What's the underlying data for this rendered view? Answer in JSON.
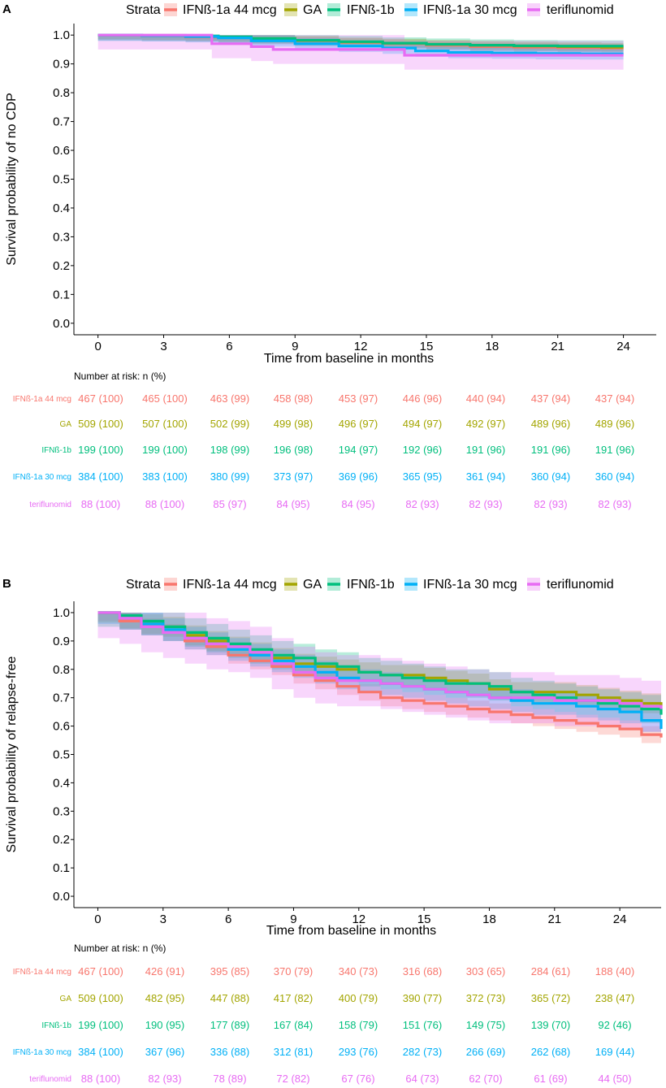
{
  "chart_data": [
    {
      "type": "line",
      "panel": "A",
      "legend_title": "Strata",
      "xlabel": "Time from baseline in months",
      "ylabel": "Survival probability of no CDP",
      "xlim": [
        -1.1,
        25.5
      ],
      "ylim": [
        -0.04,
        1.04
      ],
      "xticks": [
        0,
        3,
        6,
        9,
        12,
        15,
        18,
        21,
        24
      ],
      "yticks": [
        0.0,
        0.1,
        0.2,
        0.3,
        0.4,
        0.5,
        0.6,
        0.7,
        0.8,
        0.9,
        1.0
      ],
      "yticklabels": [
        "0.0",
        "0.1",
        "0.2",
        "0.3",
        "0.4",
        "0.5",
        "0.6",
        "0.7",
        "0.8",
        "0.9",
        "1.0"
      ],
      "risk_table_title": "Number at risk: n (%)",
      "series": [
        {
          "name": "IFNß-1a 44 mcg",
          "color": "#F8766D",
          "x": [
            0,
            2,
            4,
            5.5,
            7,
            9,
            11,
            13,
            15,
            17,
            19,
            21,
            23,
            24
          ],
          "y": [
            1.0,
            0.997,
            0.993,
            0.99,
            0.985,
            0.98,
            0.975,
            0.97,
            0.965,
            0.96,
            0.958,
            0.956,
            0.955,
            0.955
          ],
          "ci": 0.015
        },
        {
          "name": "GA",
          "color": "#A3A500",
          "x": [
            0,
            2,
            4,
            5.5,
            7,
            9,
            11,
            13,
            15,
            17,
            19,
            21,
            23,
            24
          ],
          "y": [
            1.0,
            0.998,
            0.996,
            0.993,
            0.988,
            0.982,
            0.976,
            0.972,
            0.968,
            0.965,
            0.962,
            0.96,
            0.958,
            0.958
          ],
          "ci": 0.015
        },
        {
          "name": "IFNß-1b",
          "color": "#00BF7D",
          "x": [
            0,
            2,
            4,
            5.5,
            7,
            9,
            11,
            13,
            15,
            17,
            19,
            21,
            23,
            24
          ],
          "y": [
            1.0,
            0.999,
            0.997,
            0.994,
            0.988,
            0.982,
            0.977,
            0.972,
            0.968,
            0.965,
            0.963,
            0.962,
            0.962,
            0.962
          ],
          "ci": 0.02
        },
        {
          "name": "IFNß-1a 30 mcg",
          "color": "#00B0F6",
          "x": [
            0,
            2,
            4,
            5.5,
            7,
            9,
            11,
            13,
            14.5,
            16,
            18,
            20,
            22,
            24
          ],
          "y": [
            1.0,
            0.998,
            0.995,
            0.99,
            0.98,
            0.97,
            0.962,
            0.955,
            0.945,
            0.94,
            0.938,
            0.936,
            0.935,
            0.935
          ],
          "ci": 0.02
        },
        {
          "name": "teriflunomid",
          "color": "#E76BF3",
          "x": [
            0,
            5,
            5.2,
            7,
            8,
            13,
            14,
            24
          ],
          "y": [
            1.0,
            1.0,
            0.97,
            0.96,
            0.95,
            0.95,
            0.93,
            0.93
          ],
          "ci": 0.05
        }
      ],
      "risk_table": [
        {
          "label": "IFNß-1a 44 mcg",
          "values": [
            "467 (100)",
            "465 (100)",
            "463 (99)",
            "458 (98)",
            "453 (97)",
            "446 (96)",
            "440 (94)",
            "437 (94)",
            "437 (94)"
          ]
        },
        {
          "label": "GA",
          "values": [
            "509 (100)",
            "507 (100)",
            "502 (99)",
            "499 (98)",
            "496 (97)",
            "494 (97)",
            "492 (97)",
            "489 (96)",
            "489 (96)"
          ]
        },
        {
          "label": "IFNß-1b",
          "values": [
            "199 (100)",
            "199 (100)",
            "198 (99)",
            "196 (98)",
            "194 (97)",
            "192 (96)",
            "191 (96)",
            "191 (96)",
            "191 (96)"
          ]
        },
        {
          "label": "IFNß-1a 30 mcg",
          "values": [
            "384 (100)",
            "383 (100)",
            "380 (99)",
            "373 (97)",
            "369 (96)",
            "365 (95)",
            "361 (94)",
            "360 (94)",
            "360 (94)"
          ]
        },
        {
          "label": "teriflunomid",
          "values": [
            "88 (100)",
            "88 (100)",
            "85 (97)",
            "84 (95)",
            "84 (95)",
            "82 (93)",
            "82 (93)",
            "82 (93)",
            "82 (93)"
          ]
        }
      ]
    },
    {
      "type": "line",
      "panel": "B",
      "legend_title": "Strata",
      "xlabel": "Time from baseline in months",
      "ylabel": "Survival probability of relapse-free",
      "xlim": [
        -1.1,
        25.9
      ],
      "ylim": [
        -0.04,
        1.04
      ],
      "xticks": [
        0,
        3,
        6,
        9,
        12,
        15,
        18,
        21,
        24
      ],
      "yticks": [
        0.0,
        0.1,
        0.2,
        0.3,
        0.4,
        0.5,
        0.6,
        0.7,
        0.8,
        0.9,
        1.0
      ],
      "yticklabels": [
        "0.0",
        "0.1",
        "0.2",
        "0.3",
        "0.4",
        "0.5",
        "0.6",
        "0.7",
        "0.8",
        "0.9",
        "1.0"
      ],
      "risk_table_title": "Number at risk: n (%)",
      "series": [
        {
          "name": "IFNß-1a 44 mcg",
          "color": "#F8766D",
          "x": [
            0,
            1,
            2,
            3,
            4,
            5,
            6,
            7,
            8,
            9,
            10,
            11,
            12,
            13,
            14,
            15,
            16,
            17,
            18,
            19,
            20,
            21,
            22,
            23,
            24,
            25,
            25.9
          ],
          "y": [
            1.0,
            0.97,
            0.95,
            0.93,
            0.9,
            0.88,
            0.85,
            0.83,
            0.81,
            0.78,
            0.76,
            0.74,
            0.72,
            0.7,
            0.69,
            0.68,
            0.67,
            0.66,
            0.65,
            0.64,
            0.63,
            0.62,
            0.61,
            0.6,
            0.59,
            0.57,
            0.56
          ],
          "ci": 0.03
        },
        {
          "name": "GA",
          "color": "#A3A500",
          "x": [
            0,
            1,
            2,
            3,
            4,
            5,
            6,
            7,
            8,
            9,
            10,
            11,
            12,
            13,
            14,
            15,
            16,
            17,
            18,
            19,
            20,
            21,
            22,
            23,
            24,
            25,
            25.9
          ],
          "y": [
            1.0,
            0.98,
            0.96,
            0.95,
            0.92,
            0.9,
            0.88,
            0.86,
            0.84,
            0.82,
            0.81,
            0.8,
            0.79,
            0.78,
            0.78,
            0.77,
            0.76,
            0.75,
            0.73,
            0.72,
            0.72,
            0.72,
            0.71,
            0.7,
            0.69,
            0.68,
            0.67
          ],
          "ci": 0.035
        },
        {
          "name": "IFNß-1b",
          "color": "#00BF7D",
          "x": [
            0,
            1,
            2,
            3,
            4,
            5,
            6,
            7,
            8,
            9,
            10,
            11,
            12,
            13,
            14,
            15,
            16,
            17,
            18,
            19,
            20,
            21,
            22,
            23,
            24,
            25,
            25.9
          ],
          "y": [
            1.0,
            0.99,
            0.97,
            0.95,
            0.93,
            0.91,
            0.89,
            0.87,
            0.85,
            0.84,
            0.82,
            0.81,
            0.79,
            0.78,
            0.77,
            0.76,
            0.75,
            0.75,
            0.74,
            0.72,
            0.71,
            0.7,
            0.69,
            0.68,
            0.67,
            0.66,
            0.64
          ],
          "ci": 0.05
        },
        {
          "name": "IFNß-1a 30 mcg",
          "color": "#00B0F6",
          "x": [
            0,
            1,
            2,
            3,
            4,
            5,
            6,
            7,
            8,
            9,
            10,
            11,
            12,
            13,
            14,
            15,
            16,
            17,
            18,
            19,
            20,
            21,
            22,
            23,
            24,
            25,
            25.9
          ],
          "y": [
            1.0,
            0.98,
            0.96,
            0.94,
            0.91,
            0.89,
            0.87,
            0.85,
            0.83,
            0.81,
            0.79,
            0.77,
            0.76,
            0.75,
            0.74,
            0.73,
            0.72,
            0.71,
            0.7,
            0.69,
            0.68,
            0.68,
            0.67,
            0.66,
            0.65,
            0.62,
            0.59
          ],
          "ci": 0.04
        },
        {
          "name": "teriflunomid",
          "color": "#E76BF3",
          "x": [
            0,
            1,
            2,
            3,
            4,
            5,
            6,
            7,
            8,
            9,
            10,
            11,
            12,
            13,
            14,
            15,
            16,
            17,
            18,
            19,
            20,
            21,
            22,
            23,
            24,
            25,
            25.9
          ],
          "y": [
            1.0,
            0.98,
            0.95,
            0.93,
            0.91,
            0.89,
            0.88,
            0.86,
            0.82,
            0.79,
            0.77,
            0.76,
            0.76,
            0.75,
            0.74,
            0.73,
            0.72,
            0.71,
            0.7,
            0.7,
            0.7,
            0.69,
            0.69,
            0.69,
            0.68,
            0.67,
            0.66
          ],
          "ci": 0.09
        }
      ],
      "risk_table": [
        {
          "label": "IFNß-1a 44 mcg",
          "values": [
            "467 (100)",
            "426 (91)",
            "395 (85)",
            "370 (79)",
            "340 (73)",
            "316 (68)",
            "303 (65)",
            "284 (61)",
            "188 (40)"
          ]
        },
        {
          "label": "GA",
          "values": [
            "509 (100)",
            "482 (95)",
            "447 (88)",
            "417 (82)",
            "400 (79)",
            "390 (77)",
            "372 (73)",
            "365 (72)",
            "238 (47)"
          ]
        },
        {
          "label": "IFNß-1b",
          "values": [
            "199 (100)",
            "190 (95)",
            "177 (89)",
            "167 (84)",
            "158 (79)",
            "151 (76)",
            "149 (75)",
            "139 (70)",
            "92 (46)"
          ]
        },
        {
          "label": "IFNß-1a 30 mcg",
          "values": [
            "384 (100)",
            "367 (96)",
            "336 (88)",
            "312 (81)",
            "293 (76)",
            "282 (73)",
            "266 (69)",
            "262 (68)",
            "169 (44)"
          ]
        },
        {
          "label": "teriflunomid",
          "values": [
            "88 (100)",
            "82 (93)",
            "78 (89)",
            "72 (82)",
            "67 (76)",
            "64 (73)",
            "62 (70)",
            "61 (69)",
            "44 (50)"
          ]
        }
      ]
    }
  ]
}
